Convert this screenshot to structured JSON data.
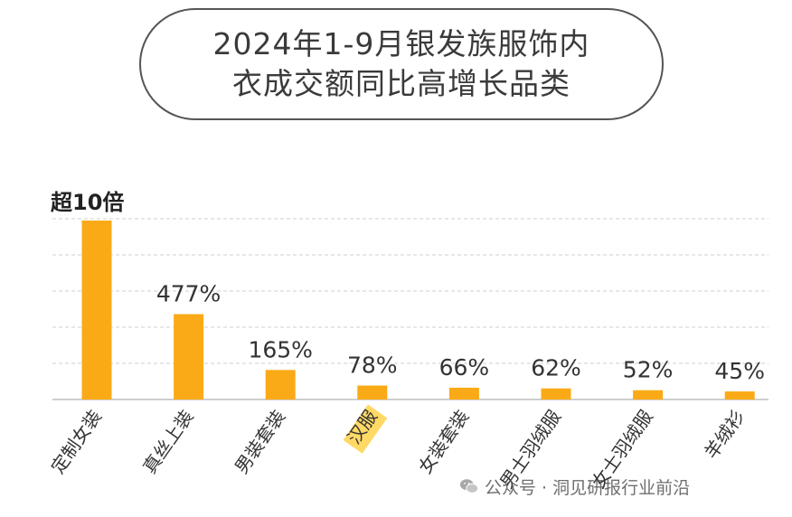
{
  "title": {
    "line1": "2024年1-9月银发族服饰内",
    "line2": "衣成交额同比高增长品类"
  },
  "watermark": {
    "text": "公众号 · 洞见研报行业前沿",
    "icon": "wechat-icon"
  },
  "colors": {
    "bar": "#FBAA17",
    "highlight": "#FFD966",
    "grid": "#cfcfcf",
    "axis": "#bdbdbd"
  },
  "chart_data": {
    "type": "bar",
    "categories": [
      "定制女装",
      "真丝上装",
      "男装套装",
      "汉服",
      "女装套装",
      "男士羽绒服",
      "女士羽绒服",
      "羊绒衫"
    ],
    "values": [
      1000,
      477,
      165,
      78,
      66,
      62,
      52,
      45
    ],
    "value_unit": "%",
    "data_labels": [
      "超10倍",
      "477%",
      "165%",
      "78%",
      "66%",
      "62%",
      "52%",
      "45%"
    ],
    "highlighted_category": "汉服",
    "grid": true,
    "title": "2024年1-9月银发族服饰内衣成交额同比高增长品类"
  }
}
